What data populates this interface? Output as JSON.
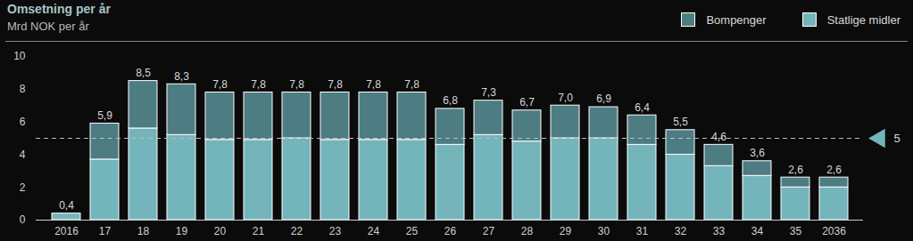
{
  "chart_data": {
    "type": "bar",
    "title": "Omsetning per år",
    "subtitle": "Mrd NOK per år",
    "stacked": true,
    "categories": [
      "2016",
      "17",
      "18",
      "19",
      "20",
      "21",
      "22",
      "23",
      "24",
      "25",
      "26",
      "27",
      "28",
      "29",
      "30",
      "31",
      "32",
      "33",
      "34",
      "35",
      "2036"
    ],
    "series": [
      {
        "name": "Statlige midler",
        "color": "#73b5ba",
        "values": [
          0.4,
          3.7,
          5.6,
          5.2,
          4.9,
          4.9,
          5.0,
          4.9,
          4.9,
          4.9,
          4.6,
          5.2,
          4.8,
          5.0,
          5.0,
          4.6,
          4.0,
          3.3,
          2.7,
          2.0,
          2.0
        ]
      },
      {
        "name": "Bompenger",
        "color": "#4d7c82",
        "values": [
          0.0,
          2.2,
          2.9,
          3.1,
          2.9,
          2.9,
          2.8,
          2.9,
          2.9,
          2.9,
          2.2,
          2.1,
          1.9,
          2.0,
          1.9,
          1.8,
          1.5,
          1.3,
          0.9,
          0.6,
          0.6
        ]
      }
    ],
    "totals": [
      0.4,
      5.9,
      8.5,
      8.3,
      7.8,
      7.8,
      7.8,
      7.8,
      7.8,
      7.8,
      6.8,
      7.3,
      6.7,
      7.0,
      6.9,
      6.4,
      5.5,
      4.6,
      3.6,
      2.6,
      2.6
    ],
    "total_labels": [
      "0,4",
      "5,9",
      "8,5",
      "8,3",
      "7,8",
      "7,8",
      "7,8",
      "7,8",
      "7,8",
      "7,8",
      "6,8",
      "7,3",
      "6,7",
      "7,0",
      "6,9",
      "6,4",
      "5,5",
      "4,6",
      "3,6",
      "2,6",
      "2,6"
    ],
    "reference_line": 5,
    "ylim": [
      0,
      10
    ],
    "yticks": [
      0,
      2,
      4,
      6,
      8,
      10
    ],
    "grid": false,
    "legend": "top-right"
  }
}
